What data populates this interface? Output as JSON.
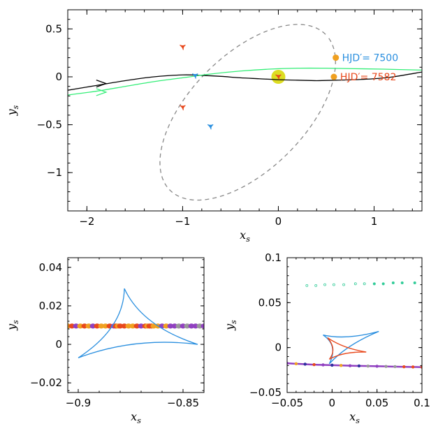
{
  "chart_data": [
    {
      "id": "main",
      "type": "line",
      "xlabel": "x",
      "xlabel_sub": "s",
      "ylabel": "y",
      "ylabel_sub": "s",
      "xlim": [
        -2.2,
        1.5
      ],
      "ylim": [
        -1.4,
        0.7
      ],
      "xticks": [
        {
          "v": -2,
          "label": "−2"
        },
        {
          "v": -1,
          "label": "−1"
        },
        {
          "v": 0,
          "label": "0"
        },
        {
          "v": 1,
          "label": "1"
        }
      ],
      "yticks": [
        {
          "v": 0.5,
          "label": "0.5"
        },
        {
          "v": 0,
          "label": "0"
        },
        {
          "v": -0.5,
          "label": "−0.5"
        },
        {
          "v": -1,
          "label": "−1"
        }
      ],
      "series": [
        {
          "name": "source trajectory (black)",
          "color": "#000000",
          "x": [
            -2.2,
            -1.9,
            -1.6,
            -1.3,
            -1.0,
            -0.8,
            -0.6,
            -0.4,
            -0.2,
            0.0,
            0.2,
            0.4,
            0.6,
            0.8,
            1.0,
            1.2,
            1.5
          ],
          "y": [
            -0.14,
            -0.09,
            -0.04,
            0.0,
            0.02,
            0.015,
            0.005,
            -0.01,
            -0.02,
            -0.03,
            -0.035,
            -0.04,
            -0.035,
            -0.03,
            -0.02,
            0.0,
            0.05
          ]
        },
        {
          "name": "source trajectory (green)",
          "color": "#33ee77",
          "x": [
            -2.2,
            -1.9,
            -1.6,
            -1.3,
            -1.0,
            -0.7,
            -0.4,
            -0.1,
            0.2,
            0.5,
            0.8,
            1.1,
            1.5
          ],
          "y": [
            -0.19,
            -0.15,
            -0.1,
            -0.05,
            -0.01,
            0.03,
            0.06,
            0.08,
            0.09,
            0.09,
            0.085,
            0.08,
            0.07
          ]
        }
      ],
      "direction_arrows": [
        {
          "x": -1.8,
          "y": -0.07,
          "color": "#000000"
        },
        {
          "x": -1.8,
          "y": -0.16,
          "color": "#33ee77"
        }
      ],
      "orbit_ellipse": {
        "cx": -0.32,
        "cy": -0.37,
        "a": 1.15,
        "b": 0.6,
        "angle_deg": 45,
        "color": "#888888",
        "style": "dashed"
      },
      "primary_lens": {
        "x": 0.0,
        "y": 0.0,
        "color": "#dddd22"
      },
      "caustics": [
        {
          "x": -1.0,
          "y": 0.31,
          "color": "#e8481c"
        },
        {
          "x": -1.0,
          "y": -0.32,
          "color": "#e8481c"
        },
        {
          "x": -0.87,
          "y": 0.01,
          "color": "#2a8fdf"
        },
        {
          "x": -0.71,
          "y": -0.52,
          "color": "#2a8fdf"
        },
        {
          "x": 0.0,
          "y": 0.0,
          "color": "#e8481c"
        }
      ],
      "annotations": [
        {
          "text": "HJD′= 7500",
          "x": 0.6,
          "y": 0.2,
          "color": "#2a8fdf",
          "marker_color": "#f0a020"
        },
        {
          "text": "HJD′= 7582",
          "x": 0.58,
          "y": 0.0,
          "color": "#e8481c",
          "marker_color": "#f0a020"
        }
      ]
    },
    {
      "id": "zoom-left",
      "type": "scatter",
      "xlabel": "x",
      "xlabel_sub": "s",
      "ylabel": "y",
      "ylabel_sub": "s",
      "xlim": [
        -0.905,
        -0.84
      ],
      "ylim": [
        -0.025,
        0.045
      ],
      "xticks": [
        {
          "v": -0.9,
          "label": "−0.9"
        },
        {
          "v": -0.85,
          "label": "−0.85"
        }
      ],
      "yticks": [
        {
          "v": 0.04,
          "label": "0.04"
        },
        {
          "v": 0.02,
          "label": "0.02"
        },
        {
          "v": 0,
          "label": "0"
        },
        {
          "v": -0.02,
          "label": "−0.02"
        }
      ],
      "caustic": {
        "color": "#2a8fdf",
        "cusps": [
          [
            -0.878,
            0.029
          ],
          [
            -0.9,
            -0.007
          ],
          [
            -0.843,
            0.0
          ]
        ]
      },
      "points": {
        "y": 0.0095,
        "x": [
          -0.905,
          -0.903,
          -0.901,
          -0.899,
          -0.897,
          -0.895,
          -0.893,
          -0.891,
          -0.889,
          -0.887,
          -0.885,
          -0.883,
          -0.882,
          -0.881,
          -0.88,
          -0.878,
          -0.876,
          -0.874,
          -0.872,
          -0.87,
          -0.868,
          -0.867,
          -0.866,
          -0.865,
          -0.864,
          -0.862,
          -0.86,
          -0.858,
          -0.856,
          -0.854,
          -0.852,
          -0.85,
          -0.848,
          -0.846,
          -0.844,
          -0.842,
          -0.84
        ],
        "colors": [
          "#f0a020",
          "#e8481c",
          "#9040c0",
          "#f0a020",
          "#e8481c",
          "#f0a020",
          "#9040c0",
          "#e8481c",
          "#f0a020",
          "#f0a020",
          "#e8481c",
          "#9040c0",
          "#e8481c",
          "#f0a020",
          "#e8481c",
          "#e8481c",
          "#f0a020",
          "#f0a020",
          "#e8481c",
          "#9040c0",
          "#e8481c",
          "#f0a020",
          "#e8481c",
          "#e8481c",
          "#f0a020",
          "#f0a020",
          "#9040c0",
          "#f0a020",
          "#9040c0",
          "#9040c0",
          "#999999",
          "#9040c0",
          "#999999",
          "#9040c0",
          "#9040c0",
          "#999999",
          "#9040c0"
        ]
      }
    },
    {
      "id": "zoom-right",
      "type": "scatter",
      "xlabel": "x",
      "xlabel_sub": "s",
      "ylabel": "y",
      "ylabel_sub": "s",
      "xlim": [
        -0.05,
        0.1
      ],
      "ylim": [
        -0.05,
        0.1
      ],
      "xticks": [
        {
          "v": -0.05,
          "label": "−0.05"
        },
        {
          "v": 0,
          "label": "0"
        },
        {
          "v": 0.05,
          "label": "0.05"
        },
        {
          "v": 0.1,
          "label": "0.1"
        }
      ],
      "yticks": [
        {
          "v": 0.1,
          "label": "0.1"
        },
        {
          "v": 0.05,
          "label": "0.05"
        },
        {
          "v": 0,
          "label": "0"
        },
        {
          "v": -0.05,
          "label": "−0.05"
        }
      ],
      "caustics": [
        {
          "color": "#2a8fdf",
          "cusps": [
            [
              -0.01,
              0.014
            ],
            [
              0.052,
              0.018
            ],
            [
              -0.003,
              -0.018
            ]
          ]
        },
        {
          "color": "#e8481c",
          "cusps": [
            [
              -0.005,
              0.011
            ],
            [
              0.038,
              -0.005
            ],
            [
              -0.003,
              -0.013
            ]
          ]
        }
      ],
      "green_points": {
        "color": "#33cc99",
        "x": [
          -0.028,
          -0.018,
          -0.008,
          0.002,
          0.013,
          0.026,
          0.036,
          0.047,
          0.057,
          0.068,
          0.078,
          0.092
        ],
        "y": [
          0.069,
          0.069,
          0.07,
          0.07,
          0.07,
          0.071,
          0.071,
          0.071,
          0.071,
          0.072,
          0.072,
          0.072
        ]
      },
      "trail": {
        "x": [
          -0.05,
          -0.04,
          -0.03,
          -0.02,
          -0.01,
          0.0,
          0.01,
          0.02,
          0.03,
          0.04,
          0.05,
          0.06,
          0.07,
          0.08,
          0.09,
          0.1
        ],
        "y": [
          -0.0175,
          -0.018,
          -0.0185,
          -0.019,
          -0.0193,
          -0.0196,
          -0.0199,
          -0.0202,
          -0.0204,
          -0.0206,
          -0.0208,
          -0.021,
          -0.0212,
          -0.0214,
          -0.0216,
          -0.0218
        ],
        "colors": [
          "#9040c0",
          "#f0a020",
          "#3030a0",
          "#e8481c",
          "#9040c0",
          "#3030a0",
          "#f0a020",
          "#9040c0",
          "#3030a0",
          "#999999",
          "#9040c0",
          "#999999",
          "#999999",
          "#e8481c",
          "#e8481c",
          "#e8481c"
        ]
      }
    }
  ]
}
